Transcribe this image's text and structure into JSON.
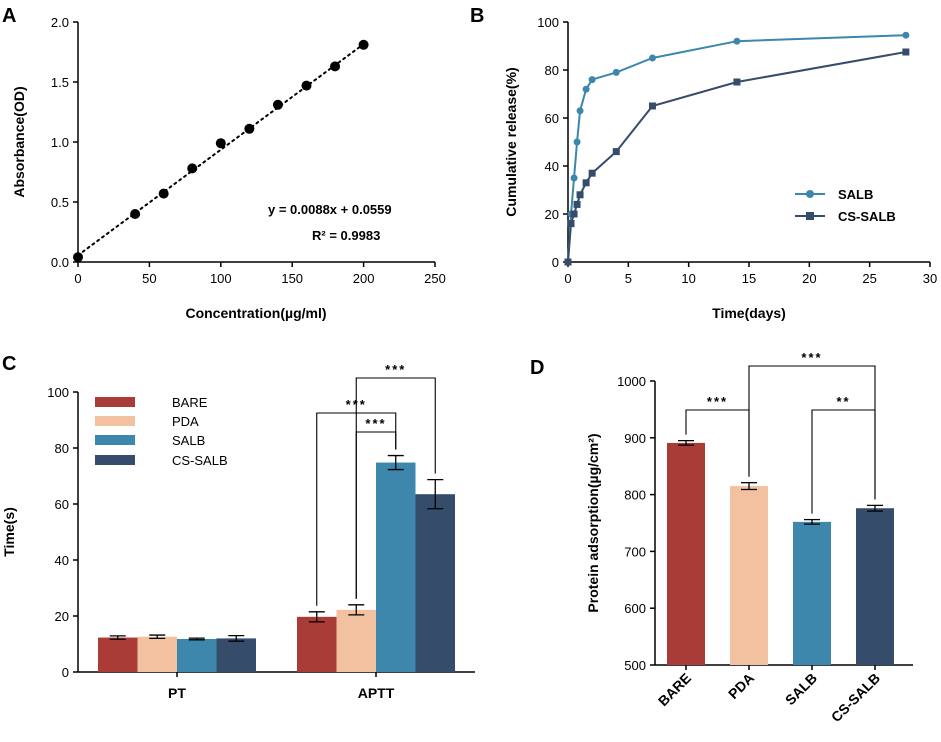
{
  "figure": {
    "colors": {
      "bare": "#a93c37",
      "pda": "#f2c2a0",
      "salb": "#3c87ab",
      "cs_salb": "#364c6b"
    }
  },
  "chart_data": [
    {
      "panel": "A",
      "type": "scatter",
      "xlabel": "Concentration(µg/ml)",
      "ylabel": "Absorbance(OD)",
      "xlim": [
        0,
        250
      ],
      "ylim": [
        0,
        2.0
      ],
      "xticks": [
        "0",
        "50",
        "100",
        "150",
        "200",
        "250"
      ],
      "yticks": [
        "0.0",
        "0.5",
        "1.0",
        "1.5",
        "2.0"
      ],
      "x": [
        0,
        40,
        60,
        80,
        100,
        120,
        140,
        160,
        180,
        200
      ],
      "y": [
        0.04,
        0.4,
        0.57,
        0.78,
        0.99,
        1.11,
        1.31,
        1.47,
        1.63,
        1.81
      ],
      "fit": {
        "slope": 0.0088,
        "intercept": 0.0559
      },
      "equation": "y = 0.0088x + 0.0559",
      "r2": "R² = 0.9983"
    },
    {
      "panel": "B",
      "type": "line",
      "xlabel": "Time(days)",
      "ylabel": "Cumulative release(%)",
      "xlim": [
        0,
        30
      ],
      "ylim": [
        0,
        100
      ],
      "xticks": [
        "0",
        "5",
        "10",
        "15",
        "20",
        "25",
        "30"
      ],
      "yticks": [
        "0",
        "20",
        "40",
        "60",
        "80",
        "100"
      ],
      "series": [
        {
          "name": "SALB",
          "color": "#3c87ab",
          "marker": "circle",
          "x": [
            0,
            0.25,
            0.5,
            0.75,
            1,
            1.5,
            2,
            4,
            7,
            14,
            28
          ],
          "y": [
            0,
            20,
            35,
            50,
            63,
            72,
            76,
            79,
            85,
            92,
            94.5
          ]
        },
        {
          "name": "CS-SALB",
          "color": "#364c6b",
          "marker": "square",
          "x": [
            0,
            0.25,
            0.5,
            0.75,
            1,
            1.5,
            2,
            4,
            7,
            14,
            28
          ],
          "y": [
            0,
            16,
            20,
            24,
            28,
            33,
            37,
            46,
            65,
            75,
            87.5
          ]
        }
      ]
    },
    {
      "panel": "C",
      "type": "bar",
      "ylabel": "Time(s)",
      "ylim": [
        0,
        100
      ],
      "yticks": [
        "0",
        "20",
        "40",
        "60",
        "80",
        "100"
      ],
      "categories": [
        "PT",
        "APTT"
      ],
      "series": [
        {
          "name": "BARE",
          "color": "#a93c37",
          "values": [
            12.3,
            19.7
          ],
          "errors": [
            0.6,
            1.8
          ]
        },
        {
          "name": "PDA",
          "color": "#f2c2a0",
          "values": [
            12.6,
            22.2
          ],
          "errors": [
            0.6,
            1.8
          ]
        },
        {
          "name": "SALB",
          "color": "#3c87ab",
          "values": [
            11.8,
            74.8
          ],
          "errors": [
            0.3,
            2.5
          ]
        },
        {
          "name": "CS-SALB",
          "color": "#364c6b",
          "values": [
            12.0,
            63.5
          ],
          "errors": [
            1.0,
            5.2
          ]
        }
      ],
      "significance": [
        {
          "from": "PDA",
          "to": "CS-SALB",
          "label": "***"
        },
        {
          "from": "BARE",
          "to": "SALB",
          "label": "***"
        },
        {
          "from": "PDA",
          "to": "SALB",
          "label": "***"
        }
      ]
    },
    {
      "panel": "D",
      "type": "bar",
      "ylabel": "Protein adsorption(µg/cm²)",
      "ylim": [
        500,
        1000
      ],
      "yticks": [
        "500",
        "600",
        "700",
        "800",
        "900",
        "1000"
      ],
      "categories": [
        "BARE",
        "PDA",
        "SALB",
        "CS-SALB"
      ],
      "colors": [
        "#a93c37",
        "#f2c2a0",
        "#3c87ab",
        "#364c6b"
      ],
      "values": [
        891,
        815,
        752,
        776
      ],
      "errors": [
        4,
        6,
        4,
        5
      ],
      "significance": [
        {
          "from": "BARE",
          "to": "PDA",
          "label": "***"
        },
        {
          "from": "PDA",
          "to": "CS-SALB",
          "label": "***"
        },
        {
          "from": "SALB",
          "to": "CS-SALB",
          "label": "**"
        }
      ]
    }
  ]
}
